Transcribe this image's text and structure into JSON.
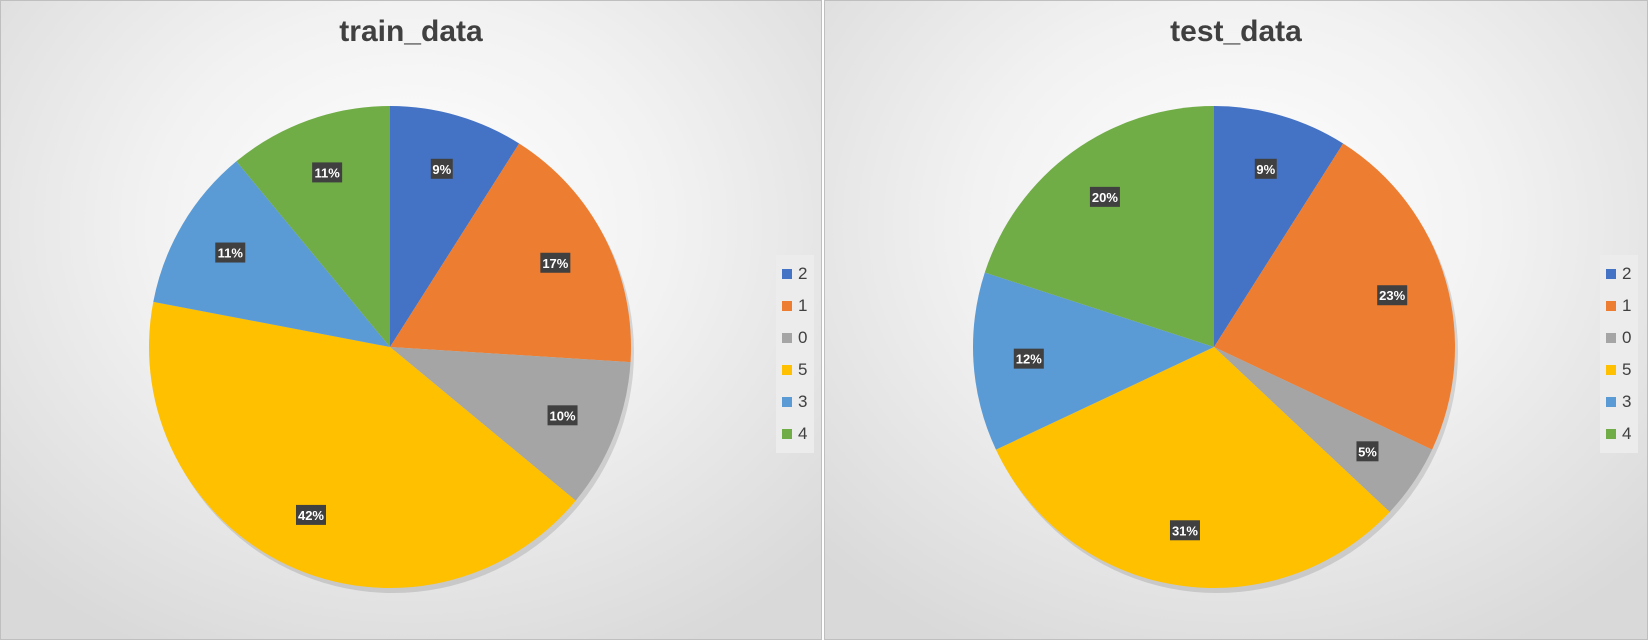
{
  "chart_data": [
    {
      "type": "pie",
      "title": "train_data",
      "legend_position": "right",
      "slices": [
        {
          "label": "2",
          "value": 9,
          "data_label": "9%",
          "color": "#4472C4"
        },
        {
          "label": "1",
          "value": 17,
          "data_label": "17%",
          "color": "#ED7D31"
        },
        {
          "label": "0",
          "value": 10,
          "data_label": "10%",
          "color": "#A5A5A5"
        },
        {
          "label": "5",
          "value": 42,
          "data_label": "42%",
          "color": "#FFC000"
        },
        {
          "label": "3",
          "value": 11,
          "data_label": "11%",
          "color": "#5B9BD5"
        },
        {
          "label": "4",
          "value": 11,
          "data_label": "11%",
          "color": "#70AD47"
        }
      ]
    },
    {
      "type": "pie",
      "title": "test_data",
      "legend_position": "right",
      "slices": [
        {
          "label": "2",
          "value": 9,
          "data_label": "9%",
          "color": "#4472C4"
        },
        {
          "label": "1",
          "value": 23,
          "data_label": "23%",
          "color": "#ED7D31"
        },
        {
          "label": "0",
          "value": 5,
          "data_label": "5%",
          "color": "#A5A5A5"
        },
        {
          "label": "5",
          "value": 31,
          "data_label": "31%",
          "color": "#FFC000"
        },
        {
          "label": "3",
          "value": 12,
          "data_label": "12%",
          "color": "#5B9BD5"
        },
        {
          "label": "4",
          "value": 20,
          "data_label": "20%",
          "color": "#70AD47"
        }
      ]
    }
  ]
}
